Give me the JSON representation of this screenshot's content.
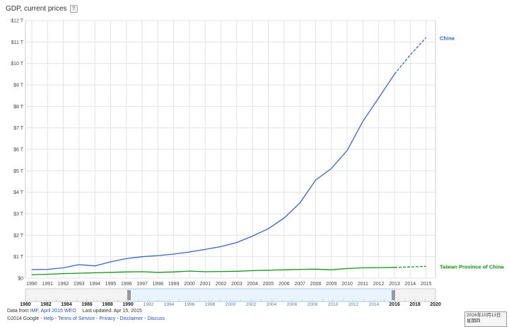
{
  "header": {
    "title": "GDP, current prices",
    "help_label": "?"
  },
  "chart_data": {
    "type": "line",
    "title": "GDP, current prices",
    "xlabel": "",
    "ylabel": "",
    "xlim": [
      1989.6,
      2015.6
    ],
    "ylim": [
      0,
      12
    ],
    "y_ticks": [
      "$0",
      "$1 T",
      "$2 T",
      "$3 T",
      "$4 T",
      "$5 T",
      "$6 T",
      "$7 T",
      "$8 T",
      "$9 T",
      "$10 T",
      "$11 T",
      "$12 T"
    ],
    "x_ticks": [
      "1990",
      "1991",
      "1992",
      "1993",
      "1994",
      "1995",
      "1996",
      "1997",
      "1998",
      "1999",
      "2000",
      "2001",
      "2002",
      "2003",
      "2004",
      "2005",
      "2006",
      "2007",
      "2008",
      "2009",
      "2010",
      "2011",
      "2012",
      "2013",
      "2014",
      "2015"
    ],
    "grid": true,
    "estimate_from_year": 2013,
    "series": [
      {
        "name": "China",
        "color": "#3366cc",
        "x": [
          1990,
          1991,
          1992,
          1993,
          1994,
          1995,
          1996,
          1997,
          1998,
          1999,
          2000,
          2001,
          2002,
          2003,
          2004,
          2005,
          2006,
          2007,
          2008,
          2009,
          2010,
          2011,
          2012,
          2013,
          2014,
          2015
        ],
        "values": [
          0.4,
          0.41,
          0.48,
          0.63,
          0.57,
          0.76,
          0.91,
          1.0,
          1.05,
          1.12,
          1.22,
          1.34,
          1.47,
          1.66,
          1.96,
          2.3,
          2.8,
          3.5,
          4.57,
          5.11,
          5.95,
          7.31,
          8.4,
          9.5,
          10.4,
          11.2
        ]
      },
      {
        "name": "Taiwan Province of China",
        "color": "#109618",
        "x": [
          1990,
          1991,
          1992,
          1993,
          1994,
          1995,
          1996,
          1997,
          1998,
          1999,
          2000,
          2001,
          2002,
          2003,
          2004,
          2005,
          2006,
          2007,
          2008,
          2009,
          2010,
          2011,
          2012,
          2013,
          2014,
          2015
        ],
        "values": [
          0.16,
          0.18,
          0.21,
          0.23,
          0.25,
          0.27,
          0.29,
          0.3,
          0.27,
          0.29,
          0.33,
          0.3,
          0.31,
          0.32,
          0.35,
          0.37,
          0.39,
          0.41,
          0.42,
          0.39,
          0.45,
          0.48,
          0.49,
          0.5,
          0.52,
          0.55
        ]
      }
    ]
  },
  "navigator": {
    "labels_major": [
      "1980",
      "1982",
      "1984",
      "1986",
      "1988",
      "1990",
      "2016",
      "2018",
      "2020"
    ],
    "labels_minor": [
      "1992",
      "1994",
      "1996",
      "1998",
      "2000",
      "2002",
      "2004",
      "2006",
      "2008",
      "2010",
      "2012",
      "2014"
    ]
  },
  "footer": {
    "data_from": "Data from ",
    "source_link": "IMF, April 2015 WEO",
    "last_updated": "Last updated: Apr 15, 2015",
    "copyright": "©2014 Google - ",
    "links": [
      "Help",
      "Terms of Service",
      "Privacy",
      "Disclaimer",
      "Discuss"
    ]
  },
  "taskbar": {
    "date": "2016年10月13日",
    "weekday": "星期四"
  }
}
